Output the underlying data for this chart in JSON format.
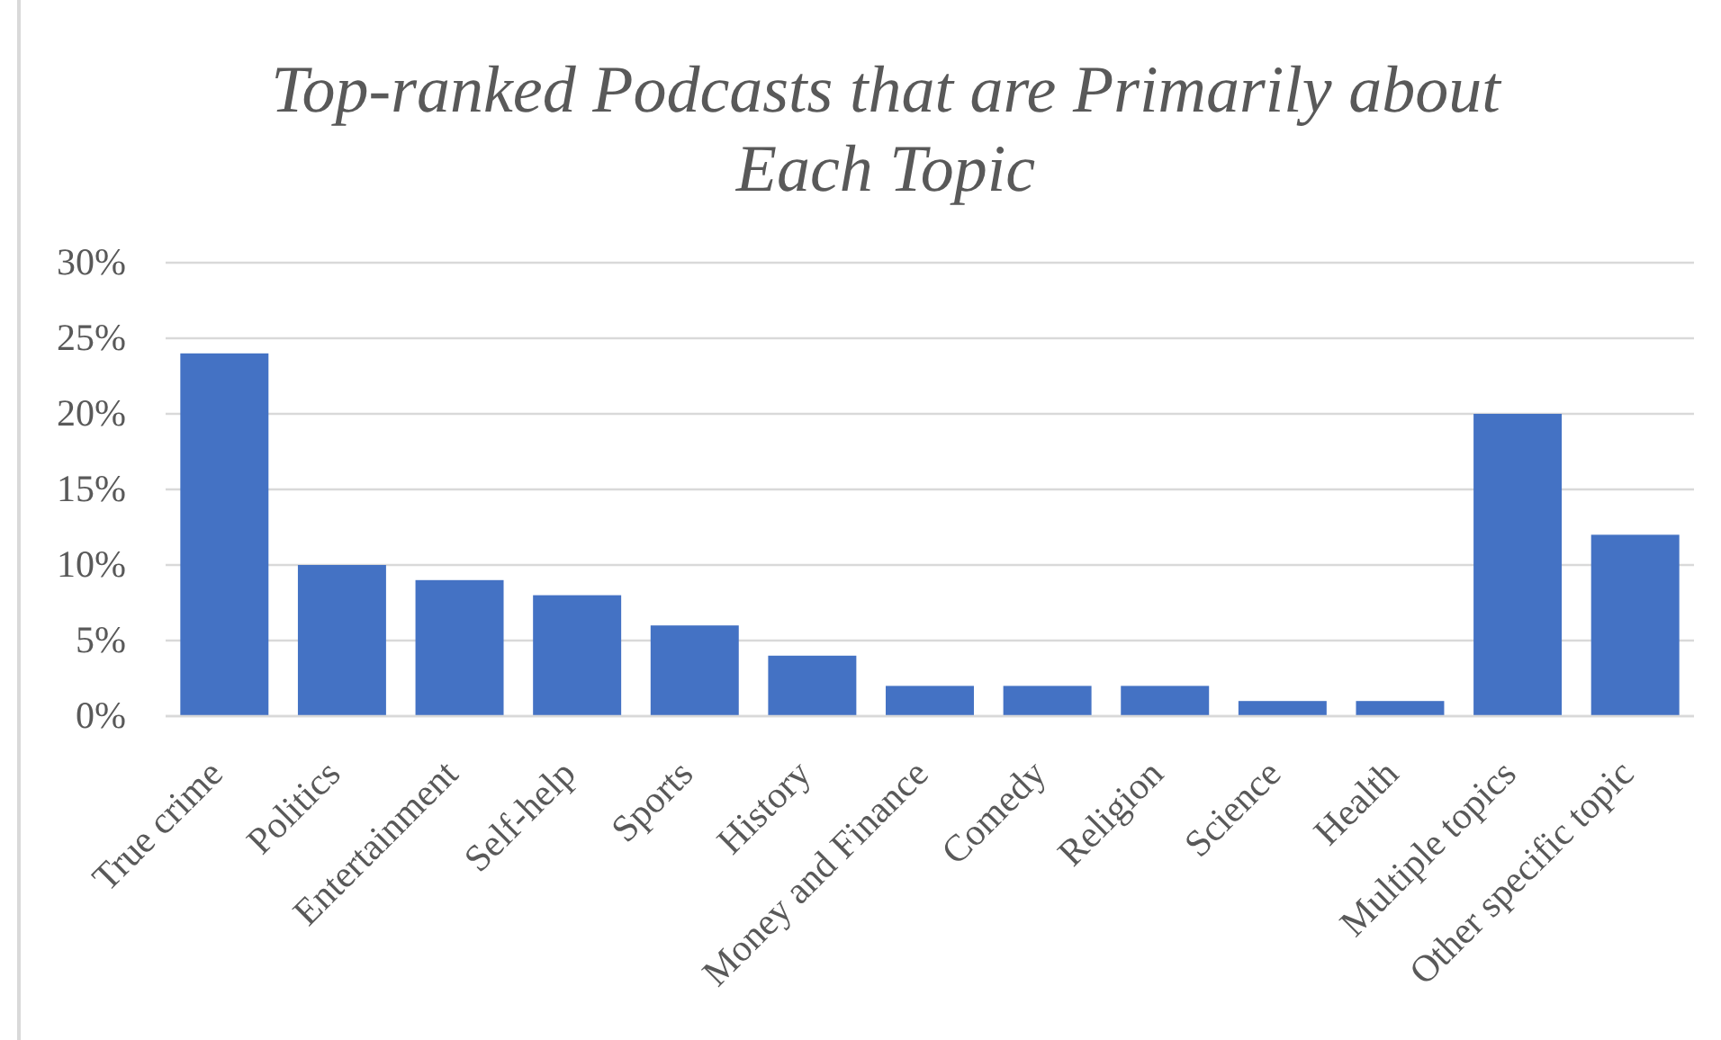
{
  "chart_data": {
    "type": "bar",
    "title": "Top-ranked Podcasts that are Primarily about Each Topic",
    "categories": [
      "True crime",
      "Politics",
      "Entertainment",
      "Self-help",
      "Sports",
      "History",
      "Money and Finance",
      "Comedy",
      "Religion",
      "Science",
      "Health",
      "Multiple topics",
      "Other specific topic"
    ],
    "values": [
      24,
      10,
      9,
      8,
      6,
      4,
      2,
      2,
      2,
      1,
      1,
      20,
      12
    ],
    "color": "#4472c4",
    "ylim": [
      0,
      30
    ],
    "yticks": [
      {
        "value": 0,
        "label": "0%"
      },
      {
        "value": 5,
        "label": "5%"
      },
      {
        "value": 10,
        "label": "10%"
      },
      {
        "value": 15,
        "label": "15%"
      },
      {
        "value": 20,
        "label": "20%"
      },
      {
        "value": 25,
        "label": "25%"
      },
      {
        "value": 30,
        "label": "30%"
      }
    ],
    "grid": true
  }
}
